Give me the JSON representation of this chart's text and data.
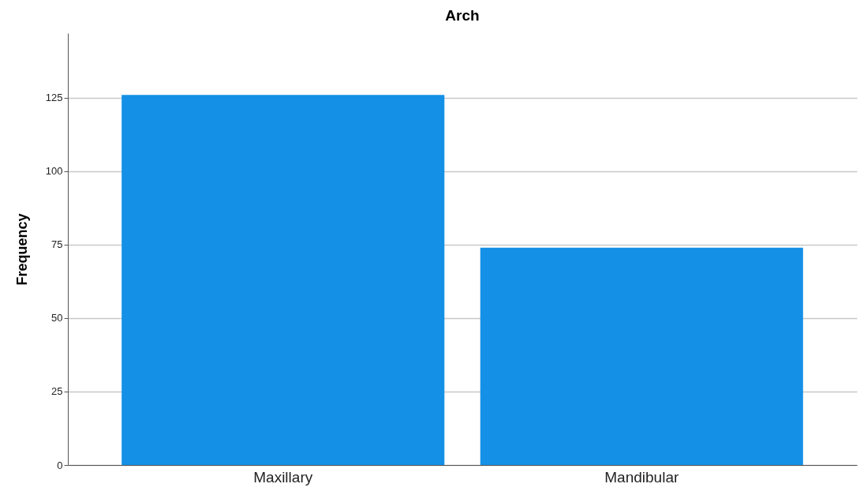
{
  "chart_data": {
    "type": "bar",
    "title": "Arch",
    "ylabel": "Frequency",
    "categories": [
      "Maxillary",
      "Mandibular"
    ],
    "values": [
      126,
      74
    ],
    "color": "#1490e6",
    "ylim": [
      0,
      147
    ],
    "yticks": [
      0,
      25,
      50,
      75,
      100,
      125
    ],
    "grid": "y"
  }
}
